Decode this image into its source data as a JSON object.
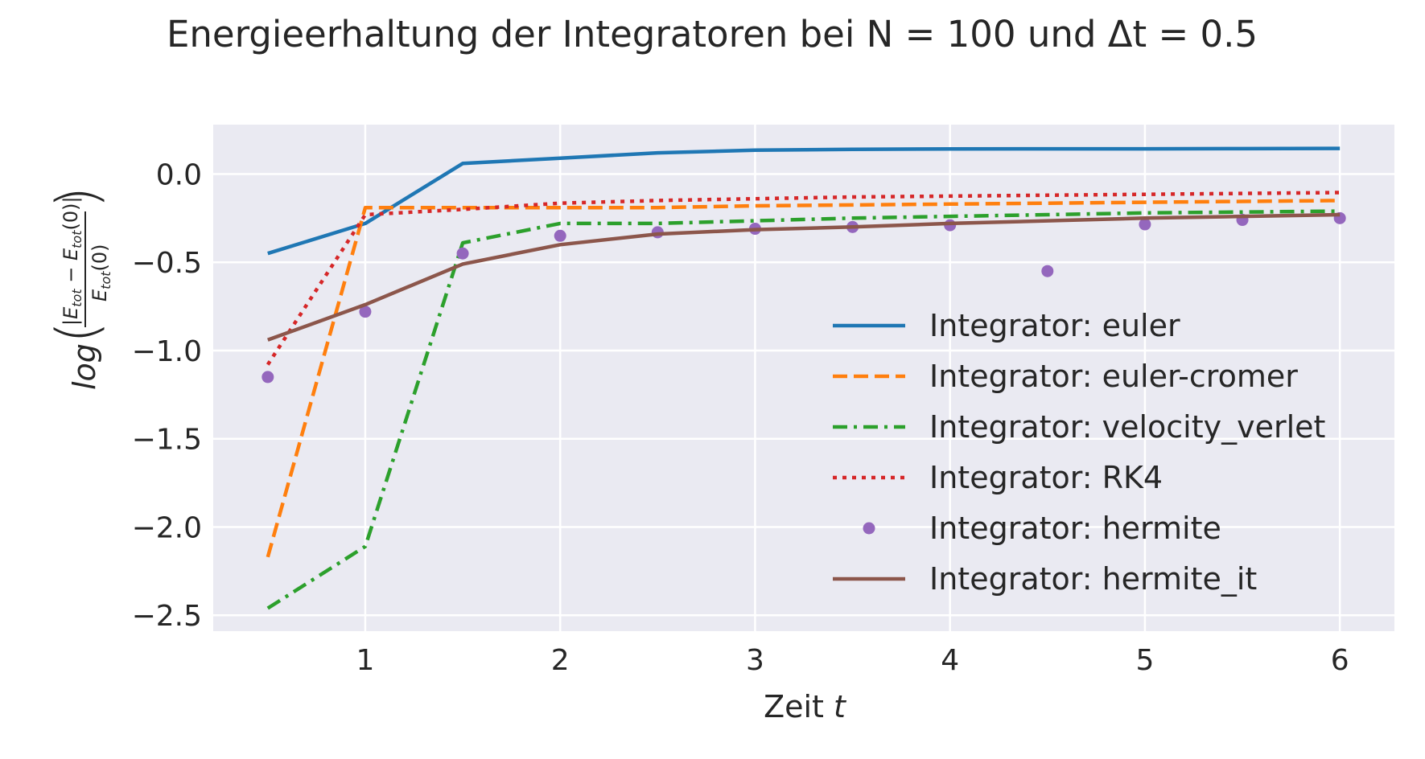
{
  "chart_data": {
    "type": "line",
    "title": "Energieerhaltung der Integratoren bei N = 100 und Δt = 0.5",
    "xlabel": "Zeit t",
    "ylabel": "log(|E_tot − E_tot(0)| / E_tot(0))",
    "xlim": [
      0.22,
      6.28
    ],
    "ylim": [
      -2.59,
      0.28
    ],
    "x_ticks": [
      1,
      2,
      3,
      4,
      5,
      6
    ],
    "y_ticks": [
      0.0,
      -0.5,
      -1.0,
      -1.5,
      -2.0,
      -2.5
    ],
    "y_tick_labels": [
      "0.0",
      "−0.5",
      "−1.0",
      "−1.5",
      "−2.0",
      "−2.5"
    ],
    "grid": true,
    "legend_position": "center-right",
    "x": [
      0.5,
      1.0,
      1.5,
      2.0,
      2.5,
      3.0,
      3.5,
      4.0,
      4.5,
      5.0,
      5.5,
      6.0
    ],
    "series": [
      {
        "name": "Integrator: euler",
        "style": "solid",
        "color": "#1f77b4",
        "values": [
          -0.45,
          -0.28,
          0.06,
          0.09,
          0.12,
          0.135,
          0.14,
          0.142,
          0.143,
          0.143,
          0.144,
          0.145
        ]
      },
      {
        "name": "Integrator: euler-cromer",
        "style": "dashed",
        "color": "#ff7f0e",
        "values": [
          -2.17,
          -0.19,
          -0.19,
          -0.19,
          -0.19,
          -0.18,
          -0.175,
          -0.17,
          -0.165,
          -0.16,
          -0.155,
          -0.15
        ]
      },
      {
        "name": "Integrator: velocity_verlet",
        "style": "dashdot",
        "color": "#2ca02c",
        "values": [
          -2.46,
          -2.11,
          -0.39,
          -0.28,
          -0.28,
          -0.265,
          -0.25,
          -0.24,
          -0.23,
          -0.22,
          -0.215,
          -0.21
        ]
      },
      {
        "name": "Integrator: RK4",
        "style": "dotted",
        "color": "#d62728",
        "values": [
          -1.08,
          -0.23,
          -0.2,
          -0.165,
          -0.15,
          -0.14,
          -0.13,
          -0.125,
          -0.12,
          -0.115,
          -0.11,
          -0.105
        ]
      },
      {
        "name": "Integrator: hermite",
        "style": "markers",
        "color": "#9467bd",
        "values": [
          -1.15,
          -0.78,
          -0.45,
          -0.35,
          -0.33,
          -0.31,
          -0.3,
          -0.29,
          -0.55,
          -0.285,
          -0.26,
          -0.25
        ]
      },
      {
        "name": "Integrator: hermite_it",
        "style": "solid",
        "color": "#8c564b",
        "values": [
          -0.94,
          -0.74,
          -0.51,
          -0.4,
          -0.34,
          -0.315,
          -0.3,
          -0.28,
          -0.265,
          -0.25,
          -0.24,
          -0.23
        ]
      }
    ]
  },
  "colors": {
    "plot_background": "#eaeaf2",
    "grid": "#ffffff",
    "text": "#262626"
  }
}
